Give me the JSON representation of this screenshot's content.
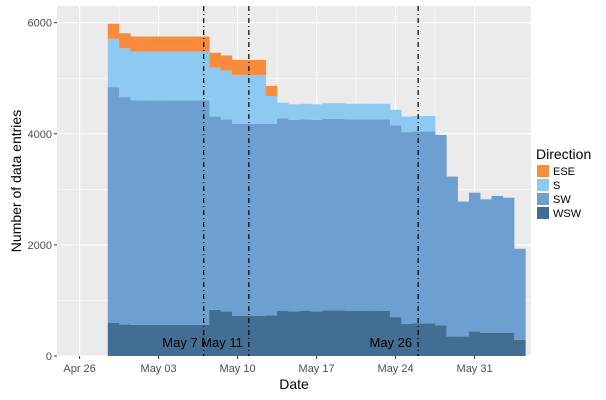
{
  "chart_data": {
    "type": "bar",
    "stacked": true,
    "title": "",
    "xlabel": "Date",
    "ylabel": "Number of data entries",
    "ylim": [
      0,
      6300
    ],
    "y_ticks": [
      0,
      2000,
      4000,
      6000
    ],
    "x_range": [
      "2016-04-24",
      "2016-06-05"
    ],
    "x_ticks": [
      {
        "date": "2016-04-26",
        "label": "Apr 26"
      },
      {
        "date": "2016-05-03",
        "label": "May 03"
      },
      {
        "date": "2016-05-10",
        "label": "May 10"
      },
      {
        "date": "2016-05-17",
        "label": "May 17"
      },
      {
        "date": "2016-05-24",
        "label": "May 24"
      },
      {
        "date": "2016-05-31",
        "label": "May 31"
      }
    ],
    "grid": true,
    "legend": {
      "title": "Direction",
      "position": "right"
    },
    "bar_width_days": 1,
    "series": [
      {
        "name": "ESE",
        "color": "#F98C3C",
        "values": [
          270,
          270,
          270,
          270,
          270,
          270,
          270,
          270,
          270,
          270,
          270,
          270,
          270,
          270,
          180,
          0,
          0,
          0,
          0,
          0,
          0,
          0,
          0,
          0,
          0,
          0,
          0,
          0,
          0,
          0,
          0,
          0,
          0,
          0,
          0,
          0,
          0
        ]
      },
      {
        "name": "S",
        "color": "#8DC9F0",
        "values": [
          870,
          880,
          880,
          880,
          880,
          880,
          880,
          880,
          880,
          880,
          880,
          880,
          880,
          880,
          500,
          280,
          280,
          280,
          280,
          280,
          280,
          280,
          280,
          280,
          280,
          280,
          280,
          280,
          280,
          0,
          0,
          0,
          0,
          0,
          0,
          0,
          0
        ]
      },
      {
        "name": "SW",
        "color": "#6E9FD1",
        "values": [
          4240,
          4090,
          4040,
          4040,
          4040,
          4040,
          4040,
          4040,
          4040,
          3480,
          3460,
          3460,
          3460,
          3460,
          3450,
          3470,
          3450,
          3450,
          3450,
          3450,
          3450,
          3450,
          3450,
          3450,
          3450,
          3450,
          3450,
          3450,
          3450,
          3430,
          2880,
          2430,
          2500,
          2400,
          2460,
          2430,
          1640
        ]
      },
      {
        "name": "WSW",
        "color": "#426E93",
        "values": [
          600,
          570,
          560,
          560,
          560,
          560,
          560,
          560,
          560,
          830,
          800,
          720,
          720,
          720,
          730,
          810,
          800,
          810,
          800,
          820,
          820,
          810,
          810,
          810,
          810,
          700,
          580,
          590,
          590,
          550,
          350,
          350,
          440,
          420,
          420,
          420,
          290
        ]
      }
    ],
    "x": [
      "2016-04-29",
      "2016-04-30",
      "2016-05-01",
      "2016-05-02",
      "2016-05-03",
      "2016-05-04",
      "2016-05-05",
      "2016-05-06",
      "2016-05-07",
      "2016-05-08",
      "2016-05-09",
      "2016-05-10",
      "2016-05-11",
      "2016-05-12",
      "2016-05-13",
      "2016-05-14",
      "2016-05-15",
      "2016-05-16",
      "2016-05-17",
      "2016-05-18",
      "2016-05-19",
      "2016-05-20",
      "2016-05-21",
      "2016-05-22",
      "2016-05-23",
      "2016-05-24",
      "2016-05-25",
      "2016-05-26",
      "2016-05-27",
      "2016-05-28",
      "2016-05-29",
      "2016-05-30",
      "2016-05-31",
      "2016-06-01",
      "2016-06-02",
      "2016-06-03",
      "2016-06-04"
    ],
    "vlines": [
      {
        "date": "2016-05-07",
        "label": "May 7"
      },
      {
        "date": "2016-05-11",
        "label": "May 11"
      },
      {
        "date": "2016-05-26",
        "label": "May 26"
      }
    ]
  }
}
